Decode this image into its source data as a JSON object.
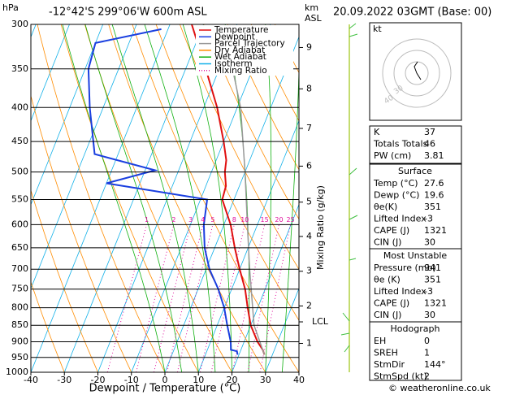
{
  "chart_data": {
    "type": "skewt",
    "title": "-12°42'S 299°06'W 600m ASL",
    "date_label": "20.09.2022 03GMT (Base: 00)",
    "y_label": "hPa",
    "km_label": "km",
    "asl_label": "ASL",
    "x_label": "Dewpoint / Temperature (°C)",
    "y2_label": "Mixing Ratio (g/kg)",
    "xlim": [
      -40,
      40
    ],
    "xticks": [
      -40,
      -30,
      -20,
      -10,
      0,
      10,
      20,
      30,
      40
    ],
    "ylim": [
      300,
      1000
    ],
    "log_y": true,
    "yticks": [
      300,
      350,
      400,
      450,
      500,
      550,
      600,
      650,
      700,
      750,
      800,
      850,
      900,
      950,
      1000
    ],
    "km_ticks": [
      {
        "value": 905,
        "label": "1"
      },
      {
        "value": 795,
        "label": "2"
      },
      {
        "value": 705,
        "label": "3"
      },
      {
        "value": 625,
        "label": "4"
      },
      {
        "value": 555,
        "label": "5"
      },
      {
        "value": 490,
        "label": "6"
      },
      {
        "value": 430,
        "label": "7"
      },
      {
        "value": 375,
        "label": "8"
      },
      {
        "value": 325,
        "label": "9"
      }
    ],
    "lcl": {
      "value": 840,
      "label": "LCL"
    },
    "mixing_ratios": [
      1,
      2,
      3,
      4,
      5,
      8,
      10,
      15,
      20,
      25
    ],
    "mixing_ratio_color": "#e0109e",
    "series": [
      {
        "name": "Temperature",
        "color": "#e01010",
        "pressure": [
          941,
          925,
          900,
          850,
          800,
          750,
          700,
          650,
          600,
          550,
          525,
          500,
          480,
          450,
          400,
          350,
          300
        ],
        "values": [
          27.6,
          26.5,
          24,
          20,
          17,
          14,
          10,
          6,
          2,
          -3.5,
          -4,
          -6,
          -7,
          -10,
          -16,
          -24,
          -33.5
        ]
      },
      {
        "name": "Dewpoint",
        "color": "#1a3fe0",
        "pressure": [
          941,
          930,
          925,
          900,
          850,
          800,
          750,
          700,
          650,
          600,
          550,
          520,
          497,
          470,
          400,
          350,
          320,
          305
        ],
        "values": [
          19.6,
          19,
          17,
          16,
          13,
          10,
          6,
          1,
          -3,
          -6,
          -8,
          -40,
          -27,
          -47,
          -54,
          -59,
          -60,
          -42
        ]
      },
      {
        "name": "Parcel Trajectory",
        "color": "#999999",
        "pressure": [
          941,
          850,
          800,
          700,
          600,
          500,
          400,
          350
        ],
        "values": [
          27.6,
          21,
          18.5,
          13,
          7,
          0,
          -9,
          -16
        ]
      },
      {
        "name": "Dry Adiabat",
        "color": "#ff8c00"
      },
      {
        "name": "Wet Adiabat",
        "color": "#10b010"
      },
      {
        "name": "Isotherm",
        "color": "#10b0e8"
      },
      {
        "name": "Mixing Ratio",
        "color": "#e0109e"
      }
    ],
    "hodograph": {
      "unit": "kt",
      "ring_labels": [
        "40",
        "30"
      ]
    },
    "indices": [
      [
        "K",
        "37"
      ],
      [
        "Totals Totals",
        "46"
      ],
      [
        "PW (cm)",
        "3.81"
      ]
    ],
    "surface": {
      "title": "Surface",
      "rows": [
        [
          "Temp (°C)",
          "27.6"
        ],
        [
          "Dewp (°C)",
          "19.6"
        ],
        [
          "θe(K)",
          "351"
        ],
        [
          "Lifted Index",
          "-3"
        ],
        [
          "CAPE (J)",
          "1321"
        ],
        [
          "CIN (J)",
          "30"
        ]
      ]
    },
    "most_unstable": {
      "title": "Most Unstable",
      "rows": [
        [
          "Pressure (mb)",
          "941"
        ],
        [
          "θe (K)",
          "351"
        ],
        [
          "Lifted Index",
          "-3"
        ],
        [
          "CAPE (J)",
          "1321"
        ],
        [
          "CIN (J)",
          "30"
        ]
      ]
    },
    "hodo_table": {
      "title": "Hodograph",
      "rows": [
        [
          "EH",
          "0"
        ],
        [
          "SREH",
          "1"
        ],
        [
          "StmDir",
          "144°"
        ],
        [
          "StmSpd (kt)",
          "2"
        ]
      ]
    },
    "footer": "© weatheronline.co.uk"
  }
}
